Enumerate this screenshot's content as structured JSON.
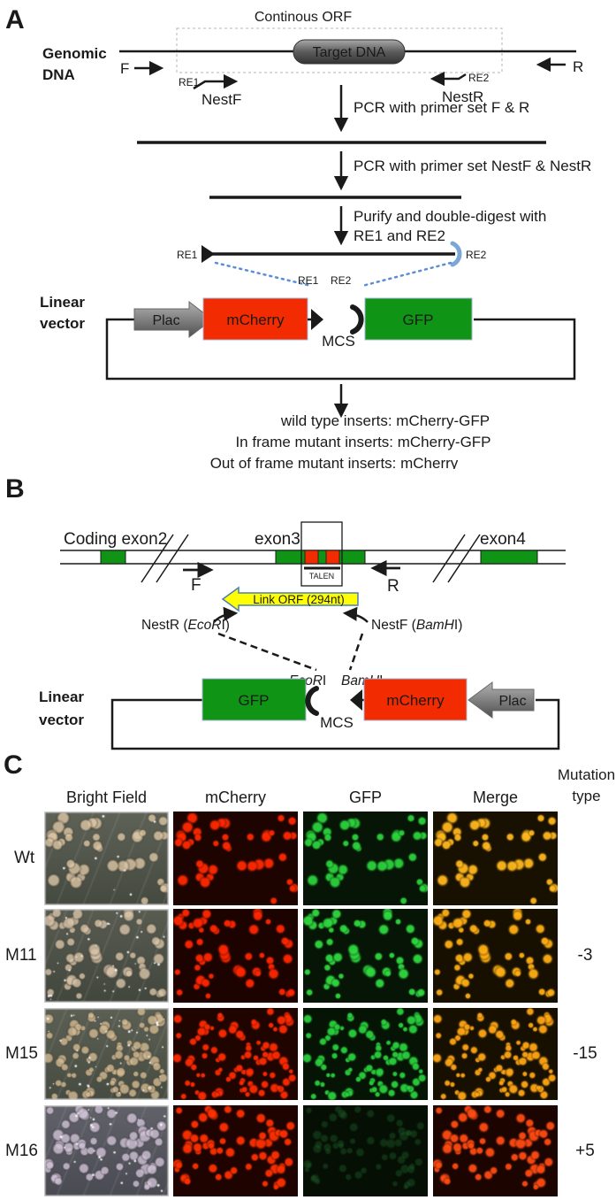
{
  "panelA": {
    "label": "A",
    "continuous_orf": "Continous ORF",
    "genomic_line1": "Genomic",
    "genomic_line2": "DNA",
    "target_dna": "Target DNA",
    "f_primer": "F",
    "r_primer": "R",
    "re1": "RE1",
    "re2": "RE2",
    "nestf": "NestF",
    "nestr": "NestR",
    "pcr1": "PCR with primer set F & R",
    "pcr2": "PCR with primer set NestF & NestR",
    "purify1": "Purify and double-digest with",
    "purify2": "RE1 and RE2",
    "frag_re1": "RE1",
    "frag_re2": "RE2",
    "mcs_re1": "RE1",
    "mcs_re2": "RE2",
    "linear1": "Linear",
    "linear2": "vector",
    "plac": "Plac",
    "mcherry": "mCherry",
    "mcs": "MCS",
    "gfp": "GFP",
    "result1": "wild type inserts: mCherry-GFP",
    "result2": "In frame mutant inserts: mCherry-GFP",
    "result3": "Out of frame mutant inserts: mCherry"
  },
  "panelB": {
    "label": "B",
    "coding_exon2": "Coding exon2",
    "exon3": "exon3",
    "exon4": "exon4",
    "f_primer": "F",
    "r_primer": "R",
    "talen": "TALEN",
    "link_orf": "Link ORF (294nt)",
    "nestR": {
      "pre": "NestR (",
      "it": "EcoR",
      "post": "I)"
    },
    "nestF": {
      "pre": "NestF (",
      "it": "BamH",
      "post": "I)"
    },
    "ecoRI": {
      "it": "EcoR",
      "post": "I"
    },
    "bamHI": {
      "it": "BamH",
      "post": "I"
    },
    "linear1": "Linear",
    "linear2": "vector",
    "gfp": "GFP",
    "mcs": "MCS",
    "mcherry": "mCherry",
    "plac": "Plac"
  },
  "panelC": {
    "label": "C",
    "mutation_header1": "Mutation",
    "mutation_header2": "type",
    "columns": [
      "Bright Field",
      "mCherry",
      "GFP",
      "Merge"
    ],
    "rows": [
      {
        "label": "Wt",
        "mutation": "",
        "seed": 11,
        "count": 40,
        "rmin": 4.5,
        "rmax": 8.5,
        "bf": {
          "top": "#5e6257",
          "bottom": "#454a40",
          "colony": "#dcc6a4",
          "specks": 8
        },
        "mcherry": {
          "bg": "#1e0400",
          "colony": "#ff2800",
          "alpha": 0.95
        },
        "gfp": {
          "bg": "#061505",
          "colony": "#2bd13c",
          "alpha": 0.95
        },
        "merge": {
          "bg": "#181000",
          "colony": "#ffb71e",
          "alpha": 0.95
        }
      },
      {
        "label": "M11",
        "mutation": "-3",
        "seed": 22,
        "count": 52,
        "rmin": 4.0,
        "rmax": 8.0,
        "bf": {
          "top": "#585c51",
          "bottom": "#42473e",
          "colony": "#d8c4a8",
          "specks": 34
        },
        "mcherry": {
          "bg": "#1c0300",
          "colony": "#ff2600",
          "alpha": 0.95
        },
        "gfp": {
          "bg": "#061505",
          "colony": "#2fd73f",
          "alpha": 0.95
        },
        "merge": {
          "bg": "#171000",
          "colony": "#ffae14",
          "alpha": 0.95
        }
      },
      {
        "label": "M15",
        "mutation": "-15",
        "seed": 33,
        "count": 90,
        "rmin": 3.2,
        "rmax": 7.0,
        "bf": {
          "top": "#5c6054",
          "bottom": "#474c42",
          "colony": "#d2ba92",
          "specks": 45
        },
        "mcherry": {
          "bg": "#200400",
          "colony": "#ff2a00",
          "alpha": 0.95
        },
        "gfp": {
          "bg": "#051404",
          "colony": "#29cf3c",
          "alpha": 0.95
        },
        "merge": {
          "bg": "#171000",
          "colony": "#ffa513",
          "alpha": 0.95
        }
      },
      {
        "label": "M16",
        "mutation": "+5",
        "seed": 44,
        "count": 62,
        "rmin": 4.0,
        "rmax": 8.0,
        "bf": {
          "top": "#62626a",
          "bottom": "#4a4a52",
          "colony": "#cfc2d6",
          "specks": 30
        },
        "mcherry": {
          "bg": "#1e0300",
          "colony": "#ff3000",
          "alpha": 0.95
        },
        "gfp": {
          "bg": "#050f04",
          "colony": "#1e5a26",
          "alpha": 0.45
        },
        "merge": {
          "bg": "#1c0500",
          "colony": "#ff4a12",
          "alpha": 0.95
        }
      }
    ]
  },
  "colors": {
    "gene_red": "#f22b00",
    "gene_green": "#0f9415",
    "link_yellow": "#ffff00",
    "link_border": "#4a7ebb",
    "dotted_blue": "#5b8ed6",
    "dash_gray": "#b5b5b5"
  }
}
